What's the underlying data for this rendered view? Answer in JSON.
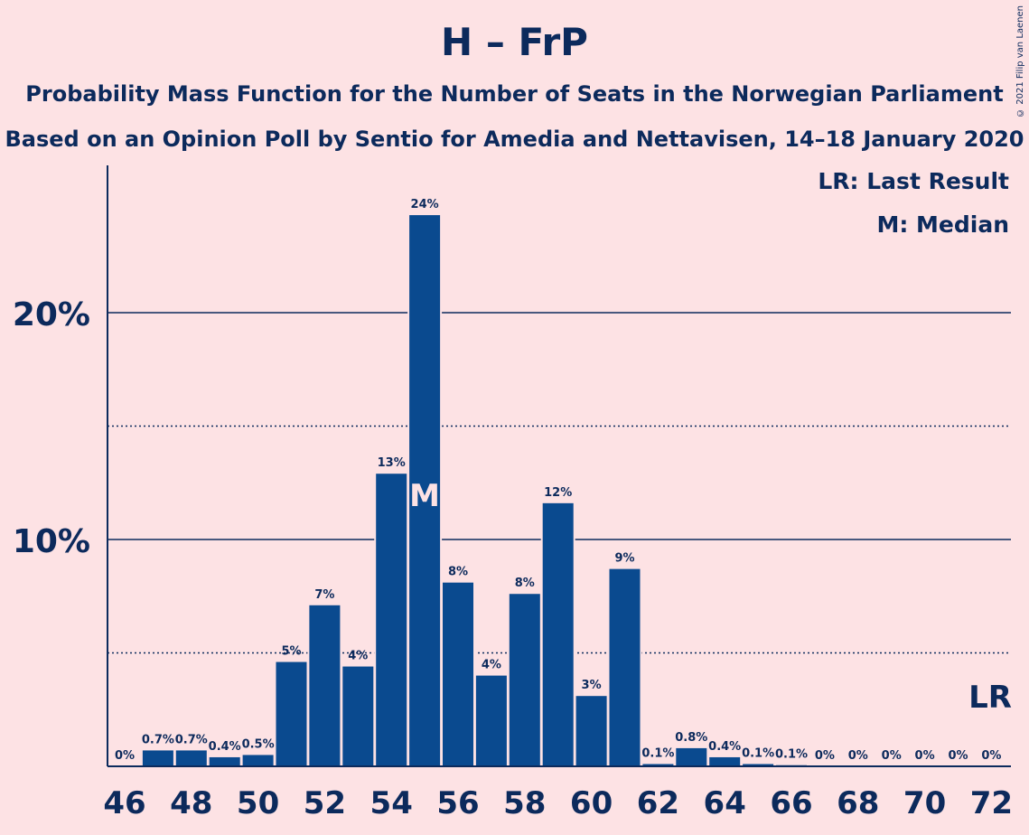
{
  "header": {
    "title": "H – FrP",
    "subtitle_line1": "Probability Mass Function for the Number of Seats in the Norwegian Parliament",
    "subtitle_line2": "Based on an Opinion Poll by Sentio for Amedia and Nettavisen, 14–18 January 2020",
    "copyright": "© 2021 Filip van Laenen"
  },
  "legend": {
    "last_result": "LR: Last Result",
    "median": "M: Median"
  },
  "colors": {
    "background": "#fde2e4",
    "bar": "#0a4a8f",
    "text": "#0c2a5c"
  },
  "chart_data": {
    "type": "bar",
    "categories": [
      46,
      47,
      48,
      49,
      50,
      51,
      52,
      53,
      54,
      55,
      56,
      57,
      58,
      59,
      60,
      61,
      62,
      63,
      64,
      65,
      66,
      67,
      68,
      69,
      70,
      71,
      72
    ],
    "values": [
      0,
      0.7,
      0.7,
      0.4,
      0.5,
      4.6,
      7.1,
      4.4,
      12.9,
      24.3,
      8.1,
      4.0,
      7.6,
      11.6,
      3.1,
      8.7,
      0.1,
      0.8,
      0.4,
      0.1,
      0.05,
      0,
      0,
      0,
      0,
      0,
      0
    ],
    "labels": [
      "0%",
      "0.7%",
      "0.7%",
      "0.4%",
      "0.5%",
      "5%",
      "7%",
      "4%",
      "13%",
      "24%",
      "8%",
      "4%",
      "8%",
      "12%",
      "3%",
      "9%",
      "0.1%",
      "0.8%",
      "0.4%",
      "0.1%",
      "0.1%",
      "0%",
      "0%",
      "0%",
      "0%",
      "0%",
      "0%"
    ],
    "x_tick_labels": [
      "46",
      "48",
      "50",
      "52",
      "54",
      "56",
      "58",
      "60",
      "62",
      "64",
      "66",
      "68",
      "70",
      "72"
    ],
    "y_tick_labels": [
      "10%",
      "20%"
    ],
    "ylim": [
      0,
      26.5
    ],
    "major_gridlines": [
      10,
      20
    ],
    "minor_gridlines": [
      5,
      15
    ],
    "median_seat": 55,
    "median_marker": "M",
    "last_result_seat": 72,
    "last_result_marker": "LR"
  }
}
